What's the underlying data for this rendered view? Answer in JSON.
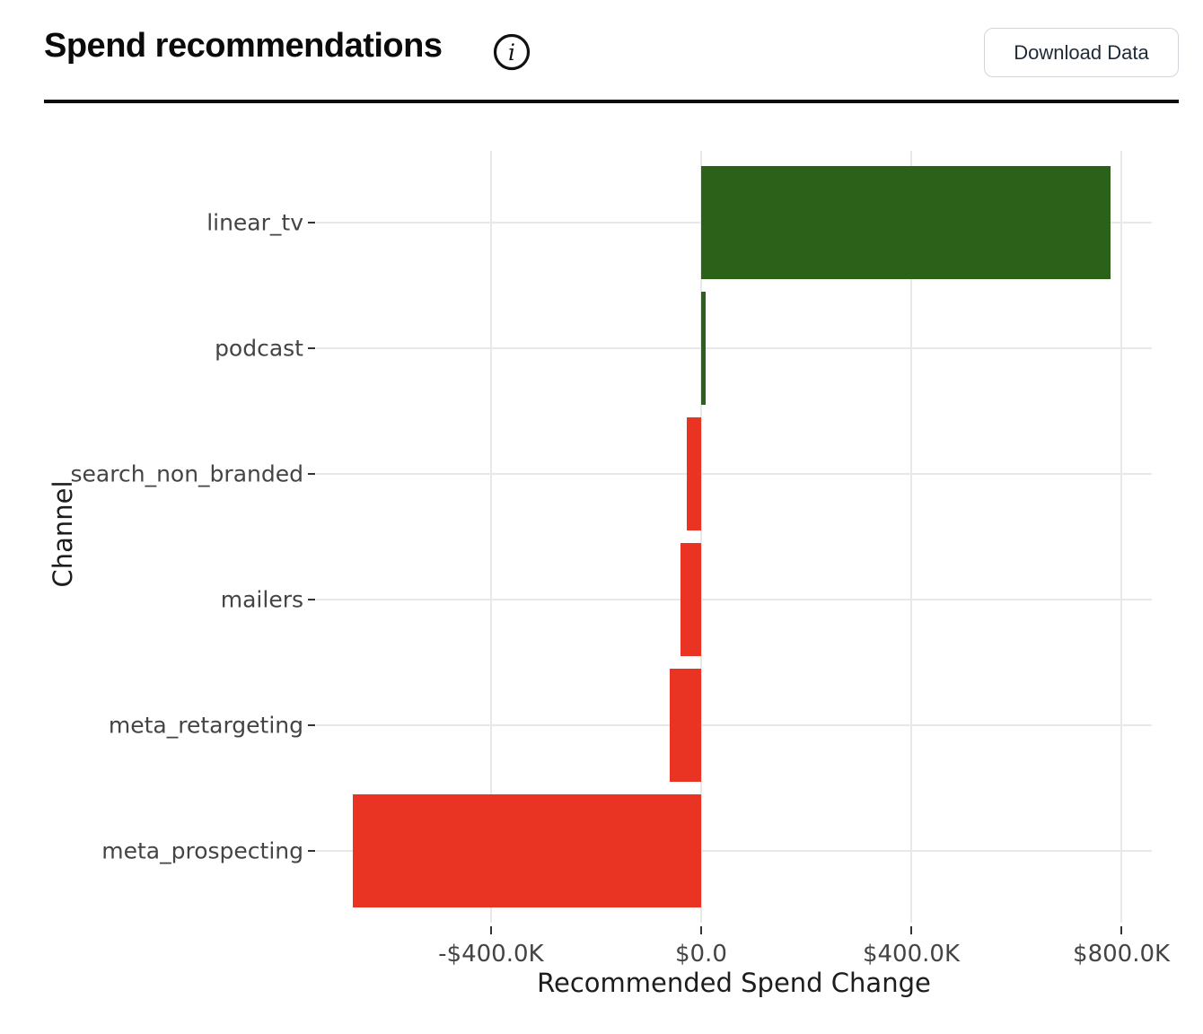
{
  "header": {
    "title": "Spend recommendations",
    "download_button_label": "Download Data"
  },
  "chart_data": {
    "type": "bar",
    "orientation": "horizontal",
    "xlabel": "Recommended Spend Change",
    "ylabel": "Channel",
    "categories_top_to_bottom": [
      "linear_tv",
      "podcast",
      "search_non_branded",
      "mailers",
      "meta_retargeting",
      "meta_prospecting"
    ],
    "values_usd": [
      780000,
      8000,
      -27000,
      -39000,
      -59000,
      -663000
    ],
    "xlim_usd": [
      -733000,
      858000
    ],
    "x_ticks": [
      {
        "value": -400000,
        "label": "-$400.0K"
      },
      {
        "value": 0,
        "label": "$0.0"
      },
      {
        "value": 400000,
        "label": "$400.0K"
      },
      {
        "value": 800000,
        "label": "$800.0K"
      }
    ],
    "grid": true,
    "legend": false,
    "positive_color": "#2b6118",
    "negative_color": "#e93323",
    "gridline_color": "#e8e8e8",
    "tick_color": "#333333",
    "label_color": "#444444"
  }
}
